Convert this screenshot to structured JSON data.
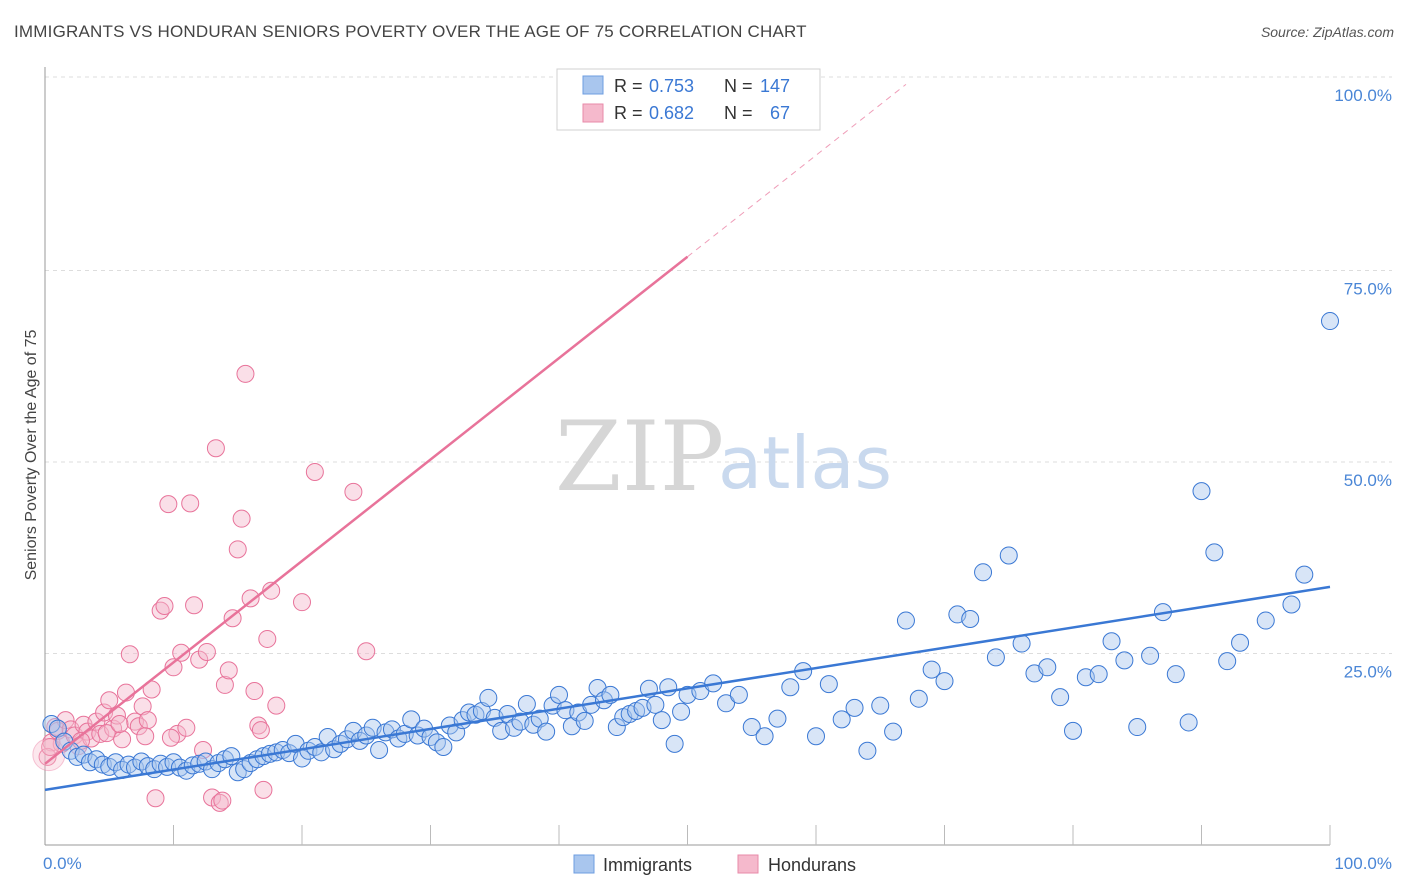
{
  "title": "IMMIGRANTS VS HONDURAN SENIORS POVERTY OVER THE AGE OF 75 CORRELATION CHART",
  "source": "Source: ZipAtlas.com",
  "watermark": {
    "zip": "ZIP",
    "atlas": "atlas"
  },
  "colors": {
    "blue": "#3a78d4",
    "blue_fill": "#a9c6ee",
    "pink": "#e8739a",
    "pink_fill": "#f5b9cc",
    "grid": "#dddddd"
  },
  "legend": {
    "rows": [
      {
        "r_label": "R =",
        "r_value": "0.753",
        "n_label": "N =",
        "n_value": "147"
      },
      {
        "r_label": "R =",
        "r_value": "0.682",
        "n_label": "N =",
        "n_value": "67"
      }
    ]
  },
  "bottom_legend": [
    "Immigrants",
    "Hondurans"
  ],
  "chart_data": {
    "type": "scatter",
    "ylabel": "Seniors Poverty Over the Age of 75",
    "xlim": [
      0,
      100
    ],
    "ylim": [
      0,
      100
    ],
    "x_tick_labels": [
      "0.0%",
      "100.0%"
    ],
    "y_tick_labels": [
      "25.0%",
      "50.0%",
      "75.0%",
      "100.0%"
    ],
    "y_ticks": [
      25,
      50,
      75,
      100
    ],
    "grid": true,
    "series": [
      {
        "name": "Immigrants",
        "color": "#3a78d4",
        "r": 0.753,
        "n": 147,
        "trend": {
          "x0": 0,
          "y0": 7.2,
          "x1": 100,
          "y1": 33.7
        },
        "points": [
          [
            0.5,
            15.8
          ],
          [
            1,
            15.2
          ],
          [
            1.5,
            13.5
          ],
          [
            2,
            12.3
          ],
          [
            2.5,
            11.5
          ],
          [
            3,
            11.8
          ],
          [
            3.5,
            10.8
          ],
          [
            4,
            11.2
          ],
          [
            4.5,
            10.5
          ],
          [
            5,
            10.2
          ],
          [
            5.5,
            10.8
          ],
          [
            6,
            9.8
          ],
          [
            6.5,
            10.5
          ],
          [
            7,
            10.1
          ],
          [
            7.5,
            10.9
          ],
          [
            8,
            10.3
          ],
          [
            8.5,
            9.9
          ],
          [
            9,
            10.6
          ],
          [
            9.5,
            10.2
          ],
          [
            10,
            10.8
          ],
          [
            10.5,
            10.1
          ],
          [
            11,
            9.7
          ],
          [
            11.5,
            10.4
          ],
          [
            12,
            10.6
          ],
          [
            12.5,
            10.9
          ],
          [
            13,
            9.9
          ],
          [
            13.5,
            10.7
          ],
          [
            14,
            11.2
          ],
          [
            14.5,
            11.6
          ],
          [
            15,
            9.5
          ],
          [
            15.5,
            9.9
          ],
          [
            16,
            10.7
          ],
          [
            16.5,
            11.2
          ],
          [
            17,
            11.6
          ],
          [
            17.5,
            11.9
          ],
          [
            18,
            12.1
          ],
          [
            18.5,
            12.4
          ],
          [
            19,
            12.0
          ],
          [
            19.5,
            13.2
          ],
          [
            20,
            11.3
          ],
          [
            20.5,
            12.3
          ],
          [
            21,
            12.8
          ],
          [
            21.5,
            12.1
          ],
          [
            22,
            14.1
          ],
          [
            22.5,
            12.5
          ],
          [
            23,
            13.2
          ],
          [
            23.5,
            13.8
          ],
          [
            24,
            14.9
          ],
          [
            24.5,
            13.6
          ],
          [
            25,
            14.3
          ],
          [
            25.5,
            15.3
          ],
          [
            26,
            12.4
          ],
          [
            26.5,
            14.7
          ],
          [
            27,
            15.1
          ],
          [
            27.5,
            13.9
          ],
          [
            28,
            14.5
          ],
          [
            28.5,
            16.4
          ],
          [
            29,
            14.3
          ],
          [
            29.5,
            15.2
          ],
          [
            30,
            14.1
          ],
          [
            30.5,
            13.4
          ],
          [
            31,
            12.8
          ],
          [
            31.5,
            15.6
          ],
          [
            32,
            14.7
          ],
          [
            32.5,
            16.3
          ],
          [
            33,
            17.3
          ],
          [
            33.5,
            17.0
          ],
          [
            34,
            17.5
          ],
          [
            34.5,
            19.2
          ],
          [
            35,
            16.6
          ],
          [
            35.5,
            14.9
          ],
          [
            36,
            17.1
          ],
          [
            36.5,
            15.3
          ],
          [
            37,
            16.1
          ],
          [
            37.5,
            18.4
          ],
          [
            38,
            15.7
          ],
          [
            38.5,
            16.5
          ],
          [
            39,
            14.8
          ],
          [
            39.5,
            18.2
          ],
          [
            40,
            19.6
          ],
          [
            40.5,
            17.6
          ],
          [
            41,
            15.5
          ],
          [
            41.5,
            17.3
          ],
          [
            42,
            16.2
          ],
          [
            42.5,
            18.3
          ],
          [
            43,
            20.5
          ],
          [
            43.5,
            18.9
          ],
          [
            44,
            19.6
          ],
          [
            44.5,
            15.4
          ],
          [
            45,
            16.7
          ],
          [
            45.5,
            17.1
          ],
          [
            46,
            17.5
          ],
          [
            46.5,
            17.9
          ],
          [
            47,
            20.4
          ],
          [
            47.5,
            18.3
          ],
          [
            48,
            16.3
          ],
          [
            48.5,
            20.6
          ],
          [
            49,
            13.2
          ],
          [
            49.5,
            17.4
          ],
          [
            50,
            19.6
          ],
          [
            51,
            20.1
          ],
          [
            52,
            21.1
          ],
          [
            53,
            18.5
          ],
          [
            54,
            19.6
          ],
          [
            55,
            15.4
          ],
          [
            56,
            14.2
          ],
          [
            57,
            16.5
          ],
          [
            58,
            20.6
          ],
          [
            59,
            22.7
          ],
          [
            60,
            14.2
          ],
          [
            61,
            21.0
          ],
          [
            62,
            16.4
          ],
          [
            63,
            17.9
          ],
          [
            64,
            12.3
          ],
          [
            65,
            18.2
          ],
          [
            66,
            14.8
          ],
          [
            67,
            29.3
          ],
          [
            68,
            19.1
          ],
          [
            69,
            22.9
          ],
          [
            70,
            21.4
          ],
          [
            71,
            30.1
          ],
          [
            72,
            29.5
          ],
          [
            73,
            35.6
          ],
          [
            74,
            24.5
          ],
          [
            75,
            37.8
          ],
          [
            76,
            26.3
          ],
          [
            77,
            22.4
          ],
          [
            78,
            23.2
          ],
          [
            79,
            19.3
          ],
          [
            80,
            14.9
          ],
          [
            81,
            21.9
          ],
          [
            82,
            22.3
          ],
          [
            83,
            26.6
          ],
          [
            84,
            24.1
          ],
          [
            85,
            15.4
          ],
          [
            86,
            24.7
          ],
          [
            87,
            30.4
          ],
          [
            88,
            22.3
          ],
          [
            89,
            16.0
          ],
          [
            90,
            46.2
          ],
          [
            91,
            38.2
          ],
          [
            92,
            24.0
          ],
          [
            93,
            26.4
          ],
          [
            95,
            29.3
          ],
          [
            97,
            31.4
          ],
          [
            98,
            35.3
          ],
          [
            100,
            68.4
          ]
        ]
      },
      {
        "name": "Hondurans",
        "color": "#e8739a",
        "r": 0.682,
        "n": 67,
        "trend": {
          "x0": 0,
          "y0": 10.6,
          "x1": 50,
          "y1": 76.8,
          "dash_to_x": 67,
          "dash_to_y": 99.3
        },
        "points": [
          [
            0.5,
            13.4
          ],
          [
            0.8,
            15.4
          ],
          [
            1,
            14.9
          ],
          [
            1.3,
            13.2
          ],
          [
            1.6,
            16.3
          ],
          [
            2,
            15.1
          ],
          [
            2.3,
            14.3
          ],
          [
            2.6,
            12.9
          ],
          [
            3,
            15.7
          ],
          [
            3.3,
            14.8
          ],
          [
            3.6,
            13.9
          ],
          [
            4,
            16.1
          ],
          [
            4.3,
            14.5
          ],
          [
            4.6,
            17.3
          ],
          [
            5,
            18.9
          ],
          [
            5.3,
            15.2
          ],
          [
            5.6,
            16.9
          ],
          [
            6,
            13.8
          ],
          [
            6.3,
            19.9
          ],
          [
            6.6,
            24.9
          ],
          [
            7,
            16.1
          ],
          [
            7.3,
            15.5
          ],
          [
            7.6,
            18.1
          ],
          [
            8,
            16.3
          ],
          [
            8.3,
            20.3
          ],
          [
            8.6,
            6.1
          ],
          [
            9,
            30.6
          ],
          [
            9.3,
            31.2
          ],
          [
            9.6,
            44.5
          ],
          [
            10,
            23.2
          ],
          [
            10.3,
            14.5
          ],
          [
            10.6,
            25.1
          ],
          [
            11,
            15.3
          ],
          [
            11.3,
            44.6
          ],
          [
            11.6,
            31.3
          ],
          [
            12,
            24.2
          ],
          [
            12.3,
            12.4
          ],
          [
            12.6,
            25.2
          ],
          [
            13,
            6.2
          ],
          [
            13.3,
            51.8
          ],
          [
            13.6,
            5.5
          ],
          [
            14,
            20.9
          ],
          [
            14.3,
            22.8
          ],
          [
            14.6,
            29.6
          ],
          [
            15,
            38.6
          ],
          [
            15.3,
            42.6
          ],
          [
            15.6,
            61.5
          ],
          [
            16,
            32.2
          ],
          [
            16.3,
            20.1
          ],
          [
            16.6,
            15.6
          ],
          [
            17,
            7.2
          ],
          [
            17.3,
            26.9
          ],
          [
            17.6,
            33.2
          ],
          [
            18,
            18.2
          ],
          [
            20,
            31.7
          ],
          [
            21,
            48.7
          ],
          [
            24,
            46.1
          ],
          [
            25,
            25.3
          ],
          [
            0.2,
            11.5
          ],
          [
            0.4,
            12.8
          ],
          [
            2.8,
            13.6
          ],
          [
            4.8,
            14.6
          ],
          [
            5.8,
            15.8
          ],
          [
            7.8,
            14.2
          ],
          [
            9.8,
            14.0
          ],
          [
            13.8,
            5.8
          ],
          [
            16.8,
            15.0
          ]
        ]
      }
    ]
  }
}
